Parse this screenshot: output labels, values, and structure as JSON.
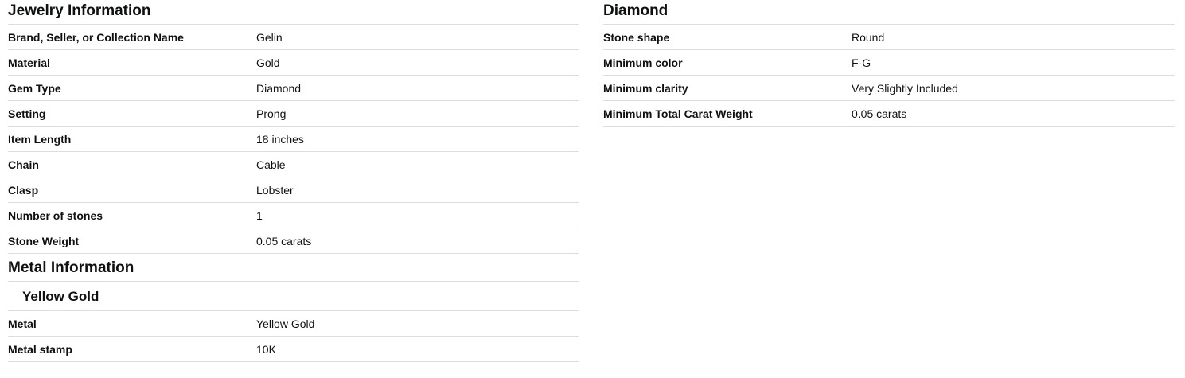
{
  "theme": {
    "background": "#ffffff",
    "text_color": "#0f1111",
    "divider_color": "#dddddd"
  },
  "sections": {
    "jewelry": {
      "title": "Jewelry Information",
      "rows": [
        {
          "label": "Brand, Seller, or Collection Name",
          "value": "Gelin"
        },
        {
          "label": "Material",
          "value": "Gold"
        },
        {
          "label": "Gem Type",
          "value": "Diamond"
        },
        {
          "label": "Setting",
          "value": "Prong"
        },
        {
          "label": "Item Length",
          "value": "18 inches"
        },
        {
          "label": "Chain",
          "value": "Cable"
        },
        {
          "label": "Clasp",
          "value": "Lobster"
        },
        {
          "label": "Number of stones",
          "value": "1"
        },
        {
          "label": "Stone Weight",
          "value": "0.05 carats"
        }
      ]
    },
    "metal": {
      "title": "Metal Information",
      "subtitle": "Yellow Gold",
      "rows": [
        {
          "label": "Metal",
          "value": "Yellow Gold"
        },
        {
          "label": "Metal stamp",
          "value": "10K"
        }
      ]
    },
    "diamond": {
      "title": "Diamond",
      "rows": [
        {
          "label": "Stone shape",
          "value": "Round"
        },
        {
          "label": "Minimum color",
          "value": "F-G"
        },
        {
          "label": "Minimum clarity",
          "value": "Very Slightly Included"
        },
        {
          "label": "Minimum Total Carat Weight",
          "value": "0.05 carats"
        }
      ]
    }
  }
}
